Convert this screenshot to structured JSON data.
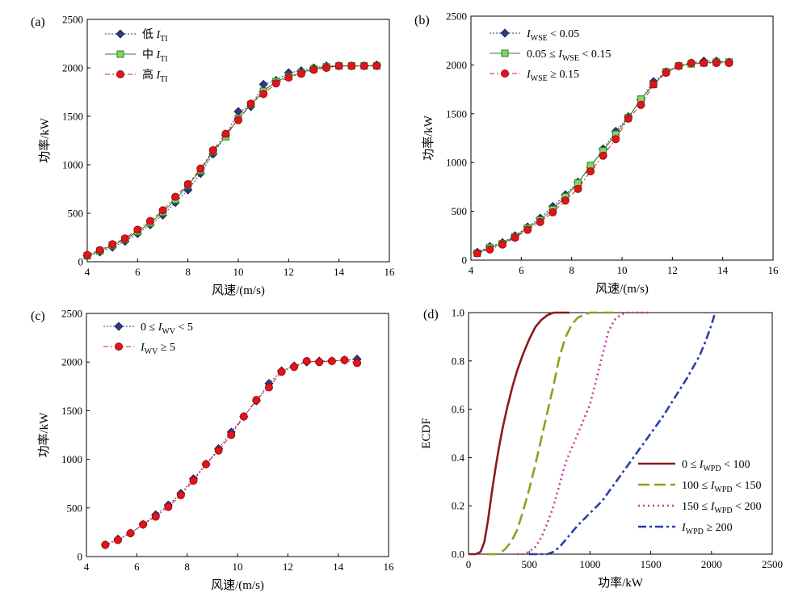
{
  "chart_data": [
    {
      "type": "line",
      "panel_label": "(a)",
      "xlabel": "风速/(m/s)",
      "ylabel": "功率/kW",
      "xlim": [
        4,
        16
      ],
      "ylim": [
        0,
        2500
      ],
      "xticks": [
        "4",
        "6",
        "8",
        "10",
        "12",
        "14",
        "16"
      ],
      "yticks": [
        "0",
        "500",
        "1000",
        "1500",
        "2000",
        "2500"
      ],
      "legend_position": "top-left",
      "series": [
        {
          "name": "低 I_TI",
          "legend_main": "低 ",
          "legend_italic": "I",
          "legend_sub": "TI",
          "legend_tail": "",
          "color": "#2e3a87",
          "marker": "diamond",
          "line": "dotted",
          "x": [
            4.0,
            4.5,
            5.0,
            5.5,
            6.0,
            6.5,
            7.0,
            7.5,
            8.0,
            8.5,
            9.0,
            9.5,
            10.0,
            10.5,
            11.0,
            11.5,
            12.0,
            12.5,
            13.0,
            13.5,
            14.0,
            14.5,
            15.0,
            15.5
          ],
          "y": [
            60,
            100,
            150,
            210,
            290,
            380,
            480,
            610,
            740,
            910,
            1110,
            1300,
            1550,
            1600,
            1830,
            1870,
            1950,
            1970,
            2000,
            2020,
            2020,
            2020,
            2020,
            2030
          ]
        },
        {
          "name": "中 I_TI",
          "legend_main": "中 ",
          "legend_italic": "I",
          "legend_sub": "TI",
          "legend_tail": "",
          "color": "#1a8a1a",
          "marker_fill": "#8ccf6a",
          "marker": "square",
          "line": "solid",
          "x": [
            4.0,
            4.5,
            5.0,
            5.5,
            6.0,
            6.5,
            7.0,
            7.5,
            8.0,
            8.5,
            9.0,
            9.5,
            10.0,
            10.5,
            11.0,
            11.5,
            12.0,
            12.5,
            13.0,
            13.5,
            14.0,
            14.5,
            15.0,
            15.5
          ],
          "y": [
            60,
            110,
            170,
            230,
            310,
            400,
            510,
            640,
            790,
            940,
            1140,
            1290,
            1480,
            1620,
            1760,
            1860,
            1910,
            1950,
            1990,
            2010,
            2020,
            2020,
            2020,
            2020
          ]
        },
        {
          "name": "高 I_TI",
          "legend_main": "高 ",
          "legend_italic": "I",
          "legend_sub": "TI",
          "legend_tail": "",
          "color": "#e0141c",
          "marker": "circle",
          "line": "dashdot",
          "x": [
            4.0,
            4.5,
            5.0,
            5.5,
            6.0,
            6.5,
            7.0,
            7.5,
            8.0,
            8.5,
            9.0,
            9.5,
            10.0,
            10.5,
            11.0,
            11.5,
            12.0,
            12.5,
            13.0,
            13.5,
            14.0,
            14.5,
            15.0,
            15.5
          ],
          "y": [
            70,
            120,
            180,
            240,
            330,
            420,
            530,
            670,
            800,
            960,
            1150,
            1320,
            1460,
            1630,
            1730,
            1840,
            1900,
            1940,
            1980,
            2000,
            2020,
            2020,
            2020,
            2020
          ]
        }
      ]
    },
    {
      "type": "line",
      "panel_label": "(b)",
      "xlabel": "风速/(m/s)",
      "ylabel": "功率/kW",
      "xlim": [
        4,
        16
      ],
      "ylim": [
        0,
        2500
      ],
      "xticks": [
        "4",
        "6",
        "8",
        "10",
        "12",
        "14",
        "16"
      ],
      "yticks": [
        "0",
        "500",
        "1000",
        "1500",
        "2000",
        "2500"
      ],
      "legend_position": "top-left",
      "series": [
        {
          "name": "I_WSE < 0.05",
          "legend_main": "",
          "legend_italic": "I",
          "legend_sub": "WSE",
          "legend_tail": " < 0.05",
          "color": "#2e3a87",
          "marker": "diamond",
          "line": "dotted",
          "x": [
            4.25,
            4.75,
            5.25,
            5.75,
            6.25,
            6.75,
            7.25,
            7.75,
            8.25,
            8.75,
            9.25,
            9.75,
            10.25,
            10.75,
            11.25,
            11.75,
            12.25,
            12.75,
            13.25,
            13.75,
            14.25
          ],
          "y": [
            80,
            140,
            180,
            250,
            340,
            430,
            550,
            670,
            800,
            950,
            1140,
            1320,
            1470,
            1640,
            1830,
            1930,
            1990,
            2020,
            2040,
            2040,
            2030
          ]
        },
        {
          "name": "0.05 ≤ I_WSE < 0.15",
          "legend_main": "0.05 ≤ ",
          "legend_italic": "I",
          "legend_sub": "WSE",
          "legend_tail": " < 0.15",
          "color": "#1a8a1a",
          "marker_fill": "#8ccf6a",
          "marker": "square",
          "line": "solid",
          "x": [
            4.25,
            4.75,
            5.25,
            5.75,
            6.25,
            6.75,
            7.25,
            7.75,
            8.25,
            8.75,
            9.25,
            9.75,
            10.25,
            10.75,
            11.25,
            11.75,
            12.25,
            12.75,
            13.25,
            13.75,
            14.25
          ],
          "y": [
            70,
            130,
            170,
            240,
            330,
            410,
            520,
            650,
            790,
            970,
            1120,
            1290,
            1460,
            1650,
            1800,
            1930,
            1990,
            2010,
            2020,
            2030,
            2030
          ]
        },
        {
          "name": "I_WSE ≥ 0.15",
          "legend_main": "",
          "legend_italic": "I",
          "legend_sub": "WSE",
          "legend_tail": " ≥ 0.15",
          "color": "#e0141c",
          "marker": "circle",
          "line": "dashdot",
          "x": [
            4.25,
            4.75,
            5.25,
            5.75,
            6.25,
            6.75,
            7.25,
            7.75,
            8.25,
            8.75,
            9.25,
            9.75,
            10.25,
            10.75,
            11.25,
            11.75,
            12.25,
            12.75,
            13.25,
            13.75,
            14.25
          ],
          "y": [
            70,
            110,
            160,
            230,
            310,
            390,
            490,
            610,
            730,
            910,
            1070,
            1240,
            1450,
            1590,
            1800,
            1920,
            1990,
            2020,
            2020,
            2020,
            2020
          ]
        }
      ]
    },
    {
      "type": "line",
      "panel_label": "(c)",
      "xlabel": "风速/(m/s)",
      "ylabel": "功率/kW",
      "xlim": [
        4,
        16
      ],
      "ylim": [
        0,
        2500
      ],
      "xticks": [
        "4",
        "6",
        "8",
        "10",
        "12",
        "14",
        "16"
      ],
      "yticks": [
        "0",
        "500",
        "1000",
        "1500",
        "2000",
        "2500"
      ],
      "legend_position": "top-left",
      "series": [
        {
          "name": "0 ≤ I_WV < 5",
          "legend_main": "0 ≤ ",
          "legend_italic": "I",
          "legend_sub": "WV",
          "legend_tail": " < 5",
          "color": "#2e3a87",
          "marker": "diamond",
          "line": "dotted",
          "x": [
            4.75,
            5.25,
            5.75,
            6.25,
            6.75,
            7.25,
            7.75,
            8.25,
            8.75,
            9.25,
            9.75,
            10.25,
            10.75,
            11.25,
            11.75,
            12.25,
            12.75,
            13.25,
            13.75,
            14.25,
            14.75
          ],
          "y": [
            120,
            180,
            240,
            330,
            430,
            530,
            650,
            800,
            950,
            1110,
            1280,
            1440,
            1600,
            1780,
            1910,
            1960,
            2000,
            2010,
            2010,
            2020,
            2030
          ]
        },
        {
          "name": "I_WV ≥ 5",
          "legend_main": "",
          "legend_italic": "I",
          "legend_sub": "WV",
          "legend_tail": " ≥ 5",
          "color": "#e0141c",
          "marker": "circle",
          "line": "dashdot",
          "x": [
            4.75,
            5.25,
            5.75,
            6.25,
            6.75,
            7.25,
            7.75,
            8.25,
            8.75,
            9.25,
            9.75,
            10.25,
            10.75,
            11.25,
            11.75,
            12.25,
            12.75,
            13.25,
            13.75,
            14.25,
            14.75
          ],
          "y": [
            120,
            170,
            240,
            330,
            410,
            510,
            630,
            780,
            950,
            1090,
            1250,
            1440,
            1610,
            1740,
            1900,
            1950,
            2010,
            2000,
            2010,
            2020,
            1990
          ]
        }
      ]
    },
    {
      "type": "line",
      "panel_label": "(d)",
      "xlabel": "功率/kW",
      "ylabel": "ECDF",
      "xlim": [
        0,
        2500
      ],
      "ylim": [
        0,
        1.0
      ],
      "xticks": [
        "0",
        "500",
        "1000",
        "1500",
        "2000",
        "2500"
      ],
      "yticks": [
        "0.0",
        "0.2",
        "0.4",
        "0.6",
        "0.8",
        "1.0"
      ],
      "legend_position": "lower-right",
      "series": [
        {
          "name": "0 ≤ I_WPD < 100",
          "legend_main": "0 ≤ ",
          "legend_italic": "I",
          "legend_sub": "WPD",
          "legend_tail": " < 100",
          "color": "#8b1a1a",
          "line": "solid",
          "x": [
            0,
            60,
            100,
            130,
            160,
            190,
            220,
            250,
            280,
            320,
            360,
            400,
            450,
            500,
            550,
            600,
            650,
            700,
            750,
            800,
            830
          ],
          "y": [
            0,
            0,
            0.01,
            0.05,
            0.14,
            0.25,
            0.35,
            0.44,
            0.52,
            0.61,
            0.69,
            0.76,
            0.83,
            0.89,
            0.94,
            0.97,
            0.99,
            1.0,
            1.0,
            1.0,
            1.0
          ]
        },
        {
          "name": "100 ≤ I_WPD < 150",
          "legend_main": "100 ≤ ",
          "legend_italic": "I",
          "legend_sub": "WPD",
          "legend_tail": " < 150",
          "color": "#9a9a20",
          "line": "dashed",
          "x": [
            150,
            250,
            300,
            350,
            400,
            450,
            500,
            550,
            600,
            650,
            700,
            750,
            800,
            850,
            900,
            950,
            1000,
            1100,
            1200,
            1250
          ],
          "y": [
            0,
            0,
            0.02,
            0.05,
            0.1,
            0.18,
            0.27,
            0.37,
            0.48,
            0.59,
            0.7,
            0.82,
            0.9,
            0.95,
            0.98,
            0.99,
            1.0,
            1.0,
            1.0,
            1.0
          ]
        },
        {
          "name": "150 ≤ I_WPD < 200",
          "legend_main": "150 ≤ ",
          "legend_italic": "I",
          "legend_sub": "WPD",
          "legend_tail": " < 200",
          "color": "#d4329c",
          "line": "dotted",
          "x": [
            400,
            450,
            500,
            550,
            600,
            650,
            700,
            750,
            800,
            850,
            900,
            950,
            1000,
            1050,
            1100,
            1150,
            1200,
            1250,
            1300,
            1400,
            1500
          ],
          "y": [
            0,
            0,
            0.01,
            0.03,
            0.07,
            0.13,
            0.2,
            0.29,
            0.38,
            0.44,
            0.5,
            0.56,
            0.62,
            0.72,
            0.82,
            0.92,
            0.97,
            0.99,
            1.0,
            1.0,
            1.0
          ]
        },
        {
          "name": "I_WPD ≥ 200",
          "legend_main": "",
          "legend_italic": "I",
          "legend_sub": "WPD",
          "legend_tail": " ≥ 200",
          "color": "#2b3fa8",
          "line": "dashdot",
          "x": [
            500,
            600,
            650,
            700,
            750,
            800,
            900,
            1000,
            1100,
            1200,
            1300,
            1400,
            1500,
            1600,
            1700,
            1800,
            1900,
            1950,
            2000,
            2030
          ],
          "y": [
            0,
            0,
            0,
            0.01,
            0.03,
            0.06,
            0.12,
            0.17,
            0.22,
            0.29,
            0.36,
            0.43,
            0.5,
            0.57,
            0.65,
            0.73,
            0.82,
            0.88,
            0.95,
            1.0
          ]
        }
      ]
    }
  ]
}
